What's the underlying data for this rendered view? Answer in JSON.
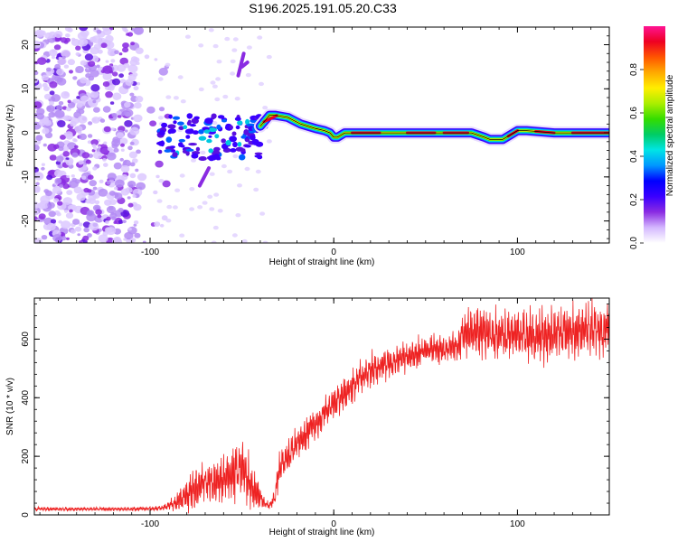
{
  "title": "S196.2025.191.05.20.C33",
  "colors": {
    "snr_line": "#ee2222",
    "axis": "#000000"
  },
  "chart_data": [
    {
      "type": "heatmap",
      "xlabel": "Height of straight line (km)",
      "ylabel": "Frequency (Hz)",
      "xlim": [
        -163,
        150
      ],
      "ylim": [
        -25,
        24
      ],
      "x_ticks": [
        -100,
        0,
        100
      ],
      "y_ticks": [
        -20,
        -10,
        0,
        10,
        20
      ],
      "grid": false,
      "colorbar": {
        "label": "Normalized spectral amplitude",
        "range": [
          0,
          1
        ],
        "ticks": [
          "0.0",
          "0.2",
          "0.4",
          "0.6",
          "0.8"
        ],
        "tick_values": [
          0,
          0.2,
          0.4,
          0.6,
          0.8
        ],
        "colormap": [
          "#ffffff",
          "#d4b8ff",
          "#8a2be2",
          "#3a00ff",
          "#0000ff",
          "#0096ff",
          "#00e5e5",
          "#00cc66",
          "#33dd00",
          "#aaee00",
          "#ffee00",
          "#ffaa00",
          "#ff5500",
          "#ee0022",
          "#ff1493"
        ]
      },
      "ridge": {
        "x": [
          -40,
          -35,
          -32,
          -25,
          -18,
          -10,
          -5,
          -2,
          0,
          2,
          6,
          10,
          20,
          40,
          60,
          75,
          82,
          85,
          92,
          98,
          100,
          105,
          120,
          150
        ],
        "y": [
          1.5,
          4,
          4,
          3.5,
          2,
          1,
          0.5,
          0,
          -1,
          -1,
          0,
          0,
          0,
          0,
          0,
          0,
          -1,
          -1.5,
          -1.5,
          0,
          0.5,
          0.5,
          0,
          0
        ]
      }
    },
    {
      "type": "line",
      "xlabel": "Height of straight line (km)",
      "ylabel": "SNR (10 * v/v)",
      "xlim": [
        -163,
        150
      ],
      "ylim": [
        0,
        740
      ],
      "x_ticks": [
        -100,
        0,
        100
      ],
      "y_ticks": [
        0,
        200,
        400,
        600
      ],
      "grid": false,
      "series": [
        {
          "x": [
            -163,
            -150,
            -130,
            -110,
            -95,
            -90,
            -85,
            -80,
            -75,
            -70,
            -65,
            -60,
            -55,
            -50,
            -45,
            -40,
            -38,
            -35,
            -32,
            -30,
            -28,
            -25,
            -20,
            -15,
            -10,
            -5,
            0,
            5,
            10,
            15,
            20,
            30,
            40,
            50,
            55,
            60,
            65,
            68,
            70,
            75,
            80,
            90,
            100,
            110,
            120,
            130,
            140,
            150
          ],
          "y": [
            20,
            20,
            20,
            20,
            22,
            30,
            45,
            70,
            90,
            110,
            110,
            120,
            140,
            160,
            100,
            60,
            40,
            30,
            60,
            150,
            180,
            200,
            240,
            280,
            310,
            350,
            380,
            410,
            440,
            470,
            490,
            520,
            540,
            560,
            570,
            560,
            575,
            575,
            620,
            625,
            620,
            610,
            620,
            610,
            620,
            625,
            630,
            630
          ],
          "amp": [
            8,
            8,
            8,
            8,
            10,
            15,
            40,
            70,
            80,
            80,
            90,
            100,
            110,
            120,
            90,
            50,
            20,
            15,
            40,
            70,
            70,
            70,
            70,
            70,
            70,
            70,
            70,
            70,
            70,
            70,
            70,
            60,
            60,
            60,
            60,
            60,
            60,
            60,
            90,
            100,
            100,
            100,
            100,
            100,
            110,
            110,
            110,
            110
          ]
        }
      ]
    }
  ]
}
